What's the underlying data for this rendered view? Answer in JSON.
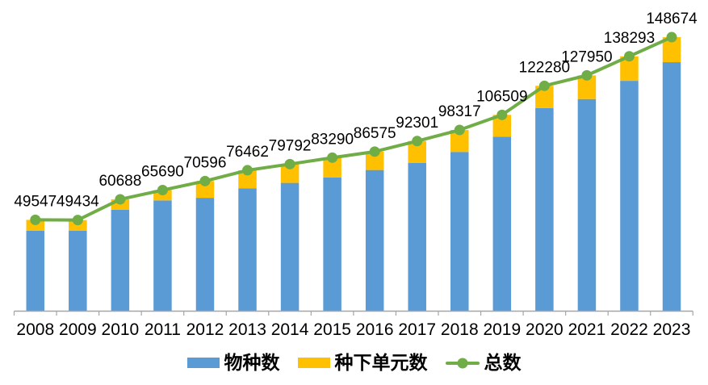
{
  "chart_data": {
    "type": "bar",
    "subtype": "stacked-bars-with-total-line",
    "title": "",
    "xlabel": "",
    "ylabel": "",
    "categories": [
      "2008",
      "2009",
      "2010",
      "2011",
      "2012",
      "2013",
      "2014",
      "2015",
      "2016",
      "2017",
      "2018",
      "2019",
      "2020",
      "2021",
      "2022",
      "2023"
    ],
    "series": [
      {
        "name": "物种数",
        "type": "bar",
        "color": "#5B9BD5",
        "values": [
          43600,
          43700,
          55000,
          60100,
          61500,
          66700,
          69600,
          72500,
          76600,
          80500,
          86400,
          94700,
          110200,
          115100,
          125000,
          135100
        ]
      },
      {
        "name": "种下单元数",
        "type": "bar",
        "color": "#FFC000",
        "values": [
          5947,
          5734,
          5688,
          5590,
          9096,
          9762,
          10192,
          10790,
          9975,
          11801,
          11917,
          11809,
          12080,
          12850,
          13293,
          13574
        ]
      }
    ],
    "line_series": {
      "name": "总数",
      "type": "line",
      "color": "#70AD47",
      "values": [
        49547,
        49434,
        60688,
        65690,
        70596,
        76462,
        79792,
        83290,
        86575,
        92301,
        98317,
        106509,
        122280,
        127950,
        138293,
        148674
      ]
    },
    "data_labels": [
      "49547",
      "49434",
      "60688",
      "65690",
      "70596",
      "76462",
      "79792",
      "83290",
      "86575",
      "92301",
      "98317",
      "106509",
      "122280",
      "127950",
      "138293",
      "148674"
    ],
    "ylim": [
      0,
      160000
    ],
    "grid": false,
    "y_axis_visible": false,
    "legend_position": "bottom",
    "axis_color": "#A6A6A6",
    "text_color": "#000000"
  }
}
